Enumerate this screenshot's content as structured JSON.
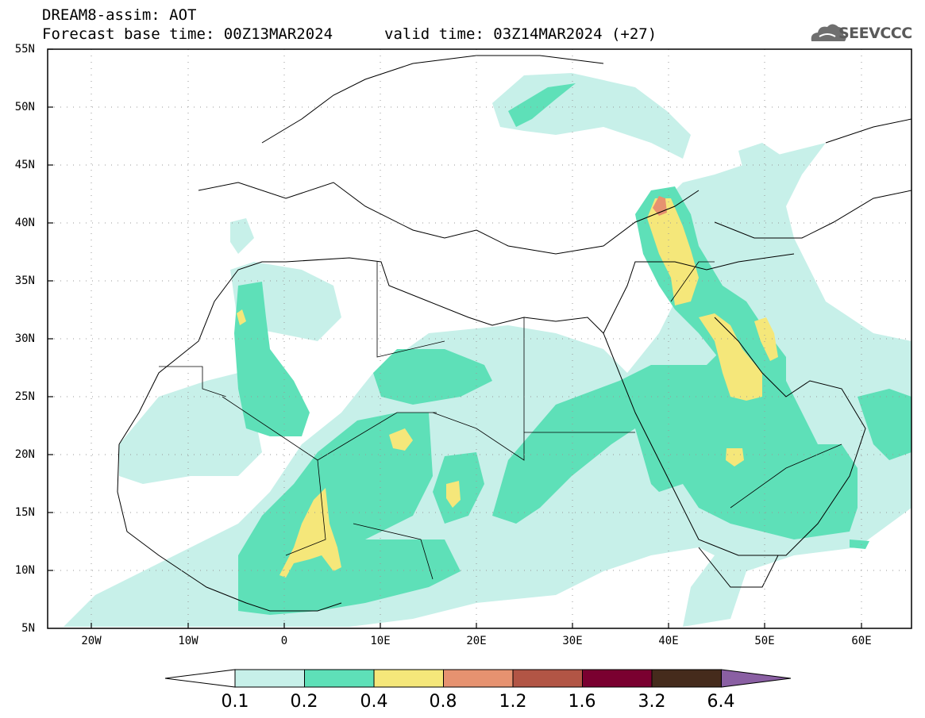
{
  "header": {
    "model_title": "DREAM8-assim: AOT",
    "base_time": "Forecast base time: 00Z13MAR2024",
    "valid_time": "valid time: 03Z14MAR2024 (+27)",
    "logo": "SEEVCCC"
  },
  "map": {
    "lon_range": [
      -25,
      65
    ],
    "lat_range": [
      5,
      55
    ],
    "lat_labels": [
      "55N",
      "50N",
      "45N",
      "40N",
      "35N",
      "30N",
      "25N",
      "20N",
      "15N",
      "10N",
      "5N"
    ],
    "lon_labels": [
      "20W",
      "10W",
      "0",
      "10E",
      "20E",
      "30E",
      "40E",
      "50E",
      "60E"
    ],
    "grid": "dotted"
  },
  "colorbar": {
    "tick_labels": [
      "0.1",
      "0.2",
      "0.4",
      "0.8",
      "1.2",
      "1.6",
      "3.2",
      "6.4"
    ],
    "colors": [
      "#ffffff",
      "#c7f0e9",
      "#5ee0b8",
      "#f5e77a",
      "#e69270",
      "#b25545",
      "#7a0030",
      "#452b1c",
      "#8a5fa3"
    ]
  }
}
